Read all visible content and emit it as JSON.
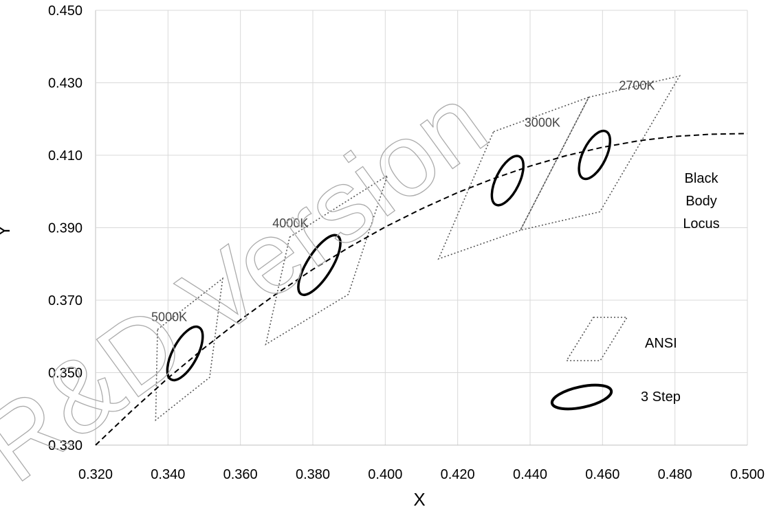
{
  "chart_data": {
    "type": "scatter",
    "xlabel": "X",
    "ylabel": "Y",
    "xlim": [
      0.32,
      0.5
    ],
    "ylim": [
      0.33,
      0.45
    ],
    "x_ticks": [
      "0.320",
      "0.340",
      "0.360",
      "0.380",
      "0.400",
      "0.420",
      "0.440",
      "0.460",
      "0.480",
      "0.500"
    ],
    "y_ticks": [
      "0.330",
      "0.350",
      "0.370",
      "0.390",
      "0.410",
      "0.430",
      "0.450"
    ],
    "grid": true,
    "ansi_quadrangles": [
      {
        "label": "5000K",
        "corners": [
          [
            0.3371,
            0.3619
          ],
          [
            0.3551,
            0.376
          ],
          [
            0.3515,
            0.3487
          ],
          [
            0.3366,
            0.3369
          ]
        ]
      },
      {
        "label": "4000K",
        "corners": [
          [
            0.3736,
            0.3874
          ],
          [
            0.4006,
            0.4044
          ],
          [
            0.3898,
            0.3716
          ],
          [
            0.367,
            0.3578
          ]
        ]
      },
      {
        "label": "3000K",
        "corners": [
          [
            0.4299,
            0.4165
          ],
          [
            0.4562,
            0.426
          ],
          [
            0.4373,
            0.3893
          ],
          [
            0.4147,
            0.3814
          ]
        ]
      },
      {
        "label": "2700K",
        "corners": [
          [
            0.4562,
            0.426
          ],
          [
            0.4813,
            0.4319
          ],
          [
            0.4593,
            0.3944
          ],
          [
            0.4373,
            0.3893
          ]
        ]
      }
    ],
    "three_step_ellipses": [
      {
        "cct": "5000K",
        "center": [
          0.3447,
          0.3553
        ]
      },
      {
        "cct": "4000K",
        "center": [
          0.3818,
          0.3797
        ]
      },
      {
        "cct": "3000K",
        "center": [
          0.4338,
          0.403
        ]
      },
      {
        "cct": "2700K",
        "center": [
          0.4578,
          0.4101
        ]
      }
    ],
    "black_body_locus": {
      "label": [
        "Black",
        "Body",
        "Locus"
      ],
      "x": [
        0.32,
        0.33,
        0.34,
        0.35,
        0.36,
        0.37,
        0.38,
        0.39,
        0.4,
        0.41,
        0.42,
        0.43,
        0.44,
        0.45,
        0.46,
        0.47,
        0.48,
        0.49,
        0.5
      ],
      "y": [
        0.33,
        0.3395,
        0.3485,
        0.3568,
        0.3646,
        0.3718,
        0.3785,
        0.3846,
        0.3902,
        0.3952,
        0.3997,
        0.4036,
        0.407,
        0.4099,
        0.4122,
        0.414,
        0.4152,
        0.4158,
        0.416
      ]
    },
    "legend": [
      {
        "label": "ANSI",
        "style": "dotted-quadrangle"
      },
      {
        "label": "3 Step",
        "style": "ellipse"
      }
    ],
    "watermark": "R&D Version"
  }
}
